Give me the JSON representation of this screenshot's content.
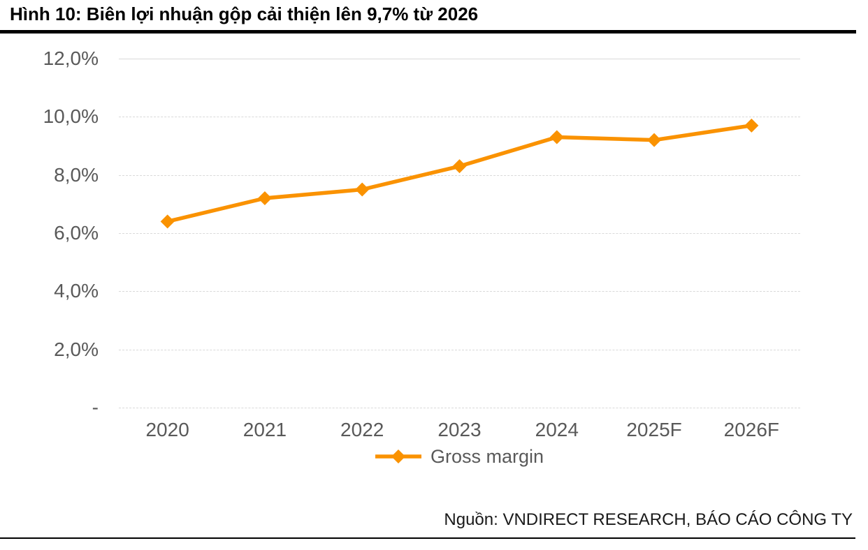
{
  "figure": {
    "title": "Hình 10: Biên lợi nhuận gộp cải thiện lên 9,7% từ 2026",
    "source": "Nguồn: VNDIRECT RESEARCH, BÁO CÁO CÔNG TY"
  },
  "chart_data": {
    "type": "line",
    "title": "",
    "xlabel": "",
    "ylabel": "",
    "categories": [
      "2020",
      "2021",
      "2022",
      "2023",
      "2024",
      "2025F",
      "2026F"
    ],
    "series": [
      {
        "name": "Gross margin",
        "values": [
          6.4,
          7.2,
          7.5,
          8.3,
          9.3,
          9.2,
          9.7
        ],
        "unit": "%"
      }
    ],
    "ylim": [
      0,
      12
    ],
    "yticks": [
      {
        "value": 12,
        "label": "12,0%"
      },
      {
        "value": 10,
        "label": "10,0%"
      },
      {
        "value": 8,
        "label": "8,0%"
      },
      {
        "value": 6,
        "label": "6,0%"
      },
      {
        "value": 4,
        "label": "4,0%"
      },
      {
        "value": 2,
        "label": "2,0%"
      },
      {
        "value": 0,
        "label": "-"
      }
    ],
    "grid": "horizontal-dashed",
    "legend_position": "bottom-center",
    "marker": "diamond",
    "colors": {
      "series": "#FA9200",
      "axis_text": "#595959",
      "gridline": "#D9D9D9",
      "title_text": "#000000",
      "rule": "#000000",
      "source_text": "#1A1A1A"
    }
  }
}
